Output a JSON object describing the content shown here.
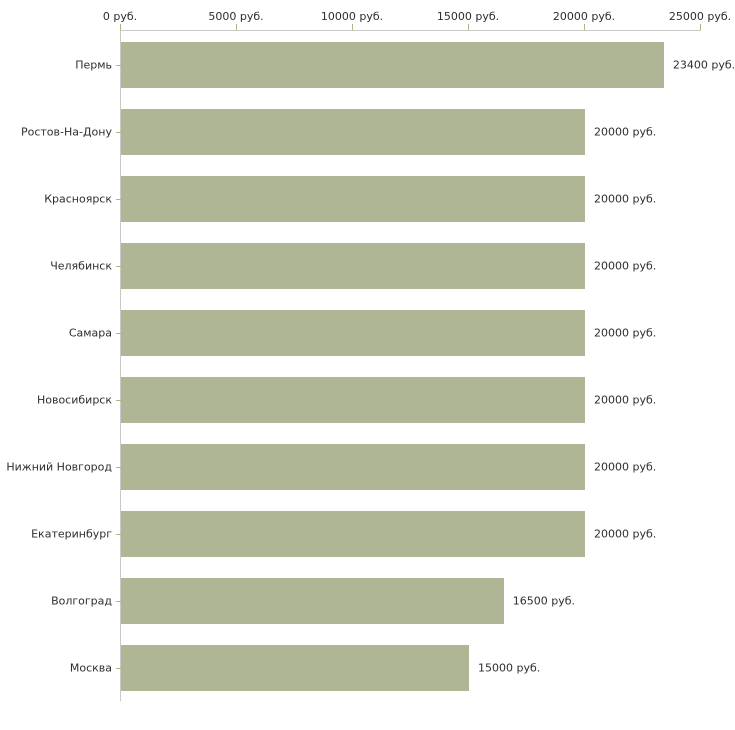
{
  "chart_data": {
    "type": "bar",
    "orientation": "horizontal",
    "title": "",
    "xlabel": "",
    "ylabel": "",
    "xlim": [
      0,
      25000
    ],
    "grid": false,
    "legend": "none",
    "x_ticks": [
      {
        "value": 0,
        "label": "0 руб."
      },
      {
        "value": 5000,
        "label": "5000 руб."
      },
      {
        "value": 10000,
        "label": "10000 руб."
      },
      {
        "value": 15000,
        "label": "15000 руб."
      },
      {
        "value": 20000,
        "label": "20000 руб."
      },
      {
        "value": 25000,
        "label": "25000 руб."
      }
    ],
    "categories": [
      "Пермь",
      "Ростов-На-Дону",
      "Красноярск",
      "Челябинск",
      "Самара",
      "Новосибирск",
      "Нижний Новгород",
      "Екатеринбург",
      "Волгоград",
      "Москва"
    ],
    "values": [
      23400,
      20000,
      20000,
      20000,
      20000,
      20000,
      20000,
      20000,
      16500,
      15000
    ],
    "value_labels": [
      "23400 руб.",
      "20000 руб.",
      "20000 руб.",
      "20000 руб.",
      "20000 руб.",
      "20000 руб.",
      "20000 руб.",
      "20000 руб.",
      "16500 руб.",
      "15000 руб."
    ],
    "colors": {
      "bar": "#aeb696",
      "axis_line": "#c9c9c9",
      "tick_mark": "#b3b380",
      "text": "#2e2e2e",
      "background": "#ffffff"
    }
  }
}
